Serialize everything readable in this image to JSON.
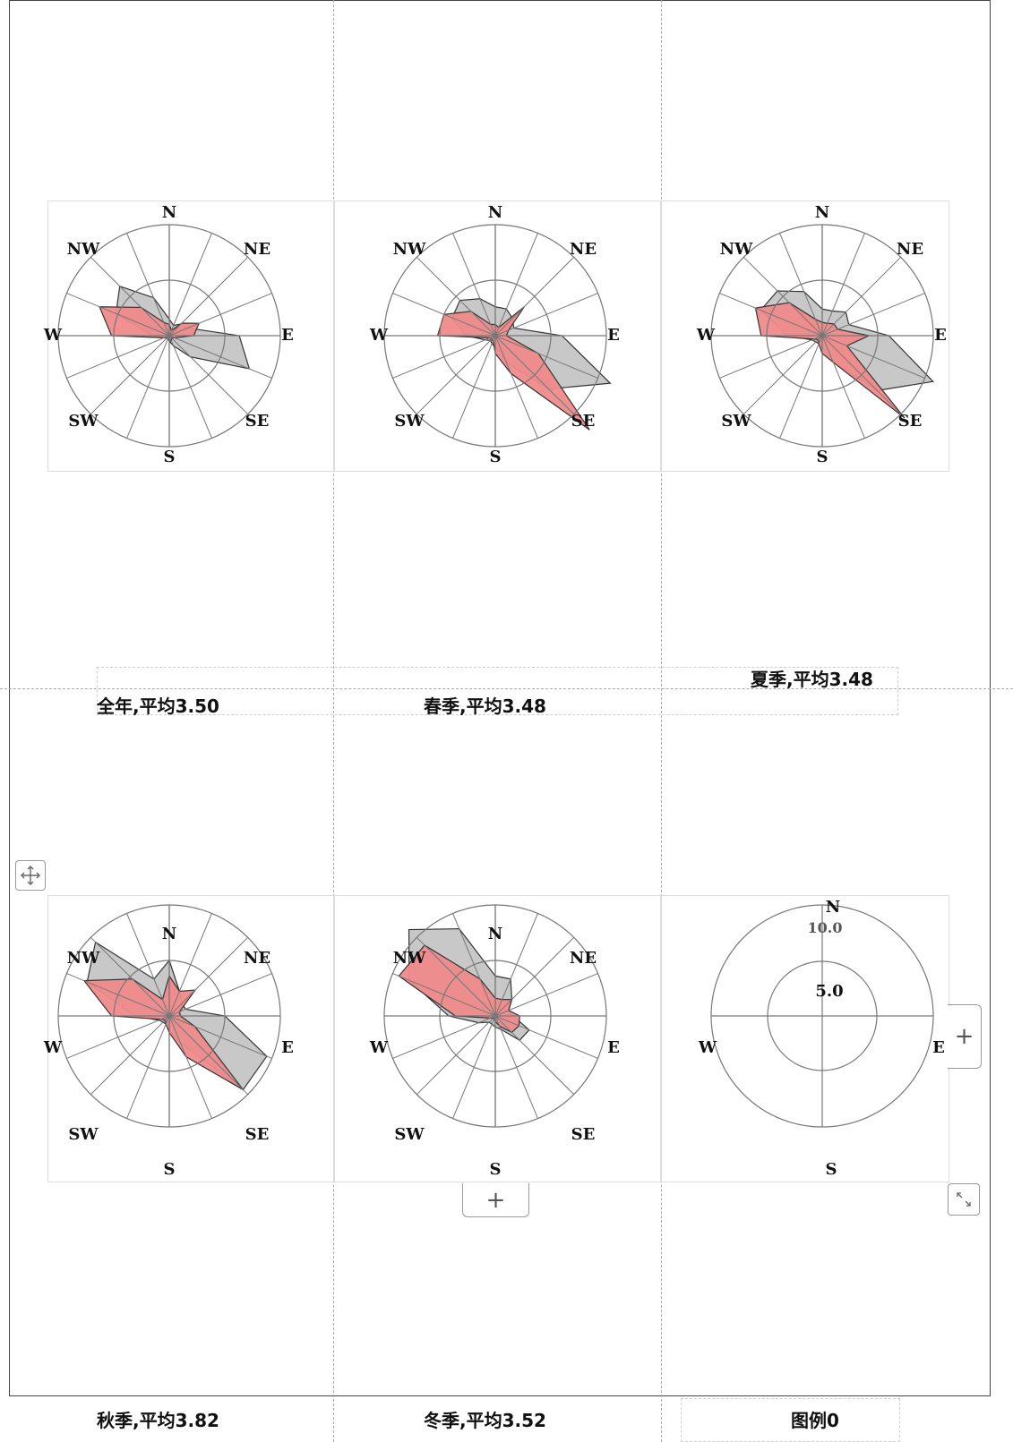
{
  "panels": [
    {
      "caption": "全年,平均3.50",
      "directions": {
        "n": "N",
        "ne": "NE",
        "e": "E",
        "se": "SE",
        "s": "S",
        "sw": "SW",
        "w": "W",
        "nw": "NW"
      },
      "red": [
        1.0,
        0.5,
        1.6,
        2.9,
        2.2,
        0.5,
        0.3,
        0.5,
        0.5,
        0.3,
        0.3,
        0.5,
        5.2,
        6.8,
        3.6,
        1.3
      ],
      "gray": [
        1.5,
        1.0,
        1.5,
        1.8,
        6.3,
        7.8,
        2.7,
        1.0,
        0.5,
        0.3,
        0.3,
        0.5,
        1.5,
        5.2,
        6.3,
        3.7
      ]
    },
    {
      "caption": "春季,平均3.48",
      "directions": {
        "n": "N",
        "ne": "NE",
        "e": "E",
        "se": "SE",
        "s": "S",
        "sw": "SW",
        "w": "W",
        "nw": "NW"
      },
      "red": [
        1.0,
        0.8,
        3.7,
        1.3,
        1.0,
        4.2,
        12.0,
        3.7,
        1.6,
        0.5,
        0.5,
        0.5,
        5.2,
        5.0,
        3.1,
        1.1
      ],
      "gray": [
        2.6,
        2.6,
        2.2,
        1.8,
        6.0,
        11.2,
        6.8,
        2.6,
        1.0,
        0.8,
        0.6,
        1.0,
        2.6,
        4.2,
        4.5,
        3.6
      ]
    },
    {
      "caption": "夏季,平均3.48",
      "directions": {
        "n": "N",
        "ne": "NE",
        "e": "E",
        "se": "SE",
        "s": "S",
        "sw": "SW",
        "w": "W",
        "nw": "NW"
      },
      "red": [
        1.2,
        1.2,
        1.5,
        1.5,
        4.2,
        2.4,
        10.5,
        2.6,
        1.6,
        0.8,
        0.5,
        0.8,
        5.5,
        6.5,
        4.2,
        1.6
      ],
      "gray": [
        2.4,
        2.4,
        3.0,
        2.6,
        6.0,
        10.8,
        7.0,
        2.6,
        1.0,
        0.8,
        0.8,
        1.0,
        3.1,
        6.0,
        5.7,
        4.3
      ]
    },
    {
      "caption": "秋季,平均3.82",
      "directions": {
        "n": "N",
        "ne": "NE",
        "e": "E",
        "se": "SE",
        "s": "S",
        "sw": "SW",
        "w": "W",
        "nw": "NW"
      },
      "red": [
        3.6,
        2.4,
        3.3,
        1.0,
        1.0,
        2.5,
        9.4,
        4.0,
        1.5,
        0.8,
        0.5,
        0.8,
        5.2,
        8.3,
        4.7,
        1.6
      ],
      "gray": [
        5.0,
        2.4,
        1.6,
        1.6,
        5.0,
        9.5,
        9.4,
        2.6,
        1.3,
        0.8,
        0.8,
        1.0,
        3.1,
        8.0,
        9.4,
        3.6
      ]
    },
    {
      "caption": "冬季,平均3.52",
      "directions": {
        "n": "N",
        "ne": "NE",
        "e": "E",
        "se": "SE",
        "s": "S",
        "sw": "SW",
        "w": "W",
        "nw": "NW"
      },
      "red": [
        1.6,
        1.6,
        2.1,
        1.3,
        2.2,
        2.3,
        2.1,
        1.0,
        0.5,
        0.3,
        0.3,
        0.5,
        3.6,
        9.4,
        9.0,
        3.6
      ],
      "gray": [
        3.6,
        3.6,
        2.1,
        1.3,
        1.6,
        3.3,
        3.1,
        1.3,
        1.0,
        0.8,
        0.8,
        1.6,
        4.2,
        8.4,
        11.0,
        8.5
      ]
    }
  ],
  "legend": {
    "caption": "图例0",
    "directions": {
      "n": "N",
      "e": "E",
      "s": "S",
      "w": "W"
    },
    "inner_label": "5.0",
    "outer_label": "10.0"
  },
  "colors": {
    "red": "#f08a8a",
    "gray": "#c8c8c8",
    "grid": "#777777",
    "frame": "#444444"
  },
  "controls": {
    "move_icon": "move-arrows-icon",
    "add_icon": "plus-icon",
    "resize_icon": "resize-diagonal-icon"
  }
}
